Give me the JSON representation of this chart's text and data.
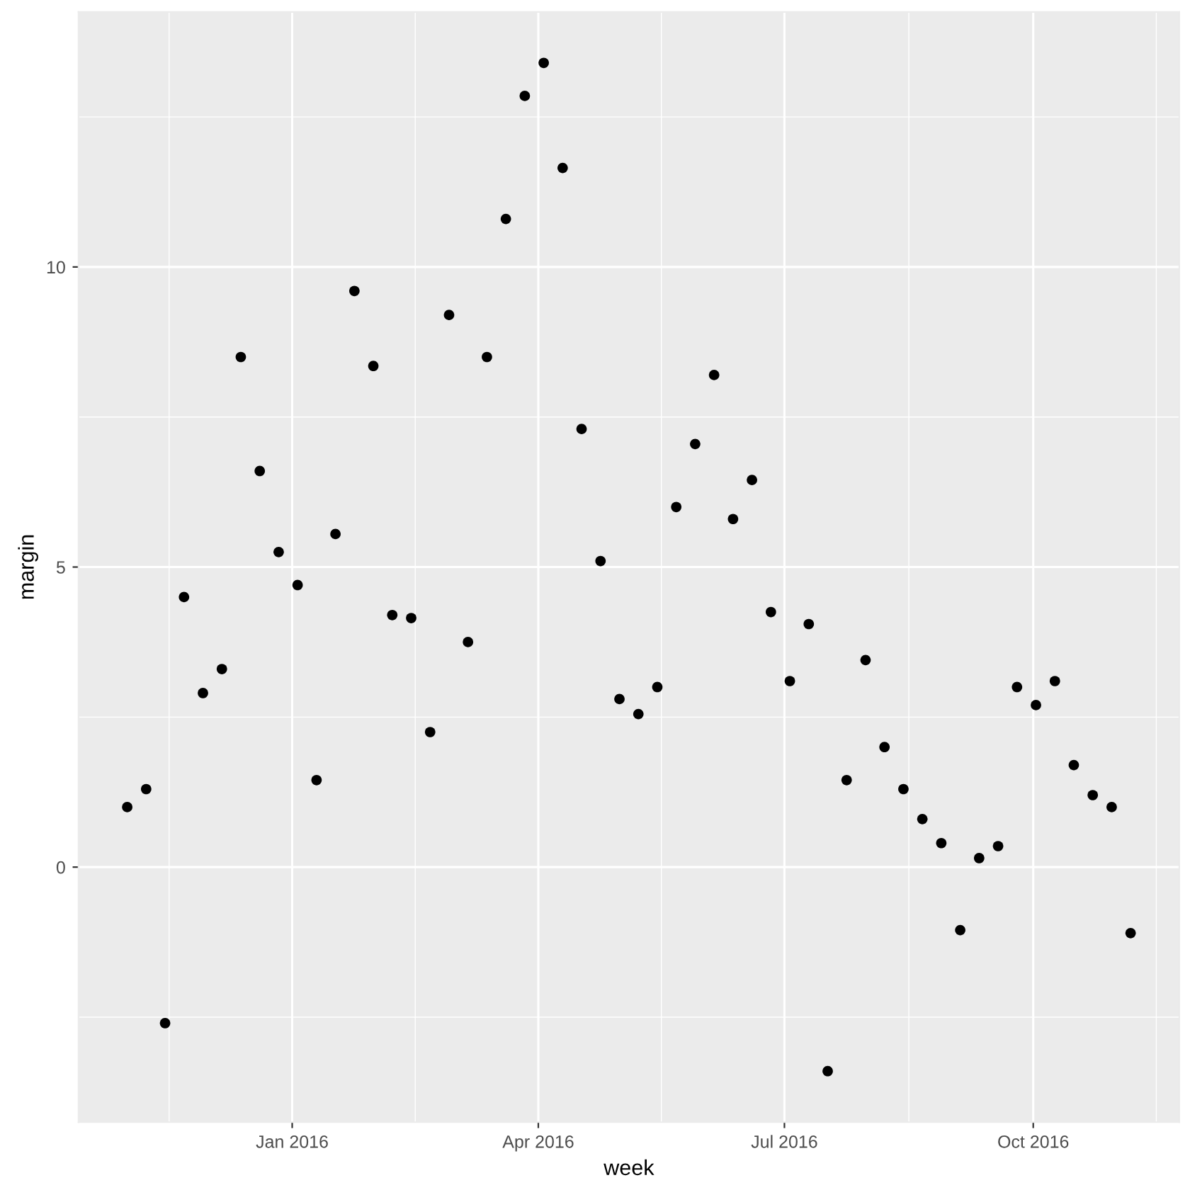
{
  "chart_data": {
    "type": "scatter",
    "xlabel": "week",
    "ylabel": "margin",
    "x": [
      "2015-11-01",
      "2015-11-08",
      "2015-11-15",
      "2015-11-22",
      "2015-11-29",
      "2015-12-06",
      "2015-12-13",
      "2015-12-20",
      "2015-12-27",
      "2016-01-03",
      "2016-01-10",
      "2016-01-17",
      "2016-01-24",
      "2016-01-31",
      "2016-02-07",
      "2016-02-14",
      "2016-02-21",
      "2016-02-28",
      "2016-03-06",
      "2016-03-13",
      "2016-03-20",
      "2016-03-27",
      "2016-04-03",
      "2016-04-10",
      "2016-04-17",
      "2016-04-24",
      "2016-05-01",
      "2016-05-08",
      "2016-05-15",
      "2016-05-22",
      "2016-05-29",
      "2016-06-05",
      "2016-06-12",
      "2016-06-19",
      "2016-06-26",
      "2016-07-03",
      "2016-07-10",
      "2016-07-17",
      "2016-07-24",
      "2016-07-31",
      "2016-08-07",
      "2016-08-14",
      "2016-08-21",
      "2016-08-28",
      "2016-09-04",
      "2016-09-11",
      "2016-09-18",
      "2016-09-25",
      "2016-10-02",
      "2016-10-09",
      "2016-10-16",
      "2016-10-23",
      "2016-10-30",
      "2016-11-06"
    ],
    "values": [
      1.0,
      1.3,
      -2.6,
      4.5,
      2.9,
      3.3,
      8.5,
      6.6,
      5.25,
      4.7,
      1.45,
      5.55,
      9.6,
      8.35,
      4.2,
      4.15,
      2.25,
      9.2,
      3.75,
      8.5,
      10.8,
      12.85,
      13.4,
      11.65,
      7.3,
      5.1,
      2.8,
      2.55,
      3.0,
      6.0,
      7.05,
      8.2,
      5.8,
      6.45,
      4.25,
      3.1,
      4.05,
      -3.4,
      1.45,
      3.45,
      2.0,
      1.3,
      0.8,
      0.4,
      -1.05,
      0.15,
      0.35,
      3.0,
      2.7,
      3.1,
      1.7,
      1.2,
      1.0,
      -1.1
    ],
    "color": "#000000",
    "marker": "circle",
    "xlim": [
      "2015-10-14",
      "2016-11-24"
    ],
    "ylim": [
      -4.25,
      14.25
    ],
    "xticks": [
      {
        "value": "2016-01-01",
        "label": "Jan 2016"
      },
      {
        "value": "2016-04-01",
        "label": "Apr 2016"
      },
      {
        "value": "2016-07-01",
        "label": "Jul 2016"
      },
      {
        "value": "2016-10-01",
        "label": "Oct 2016"
      }
    ],
    "yticks": [
      0,
      5,
      10
    ],
    "grid": true
  }
}
